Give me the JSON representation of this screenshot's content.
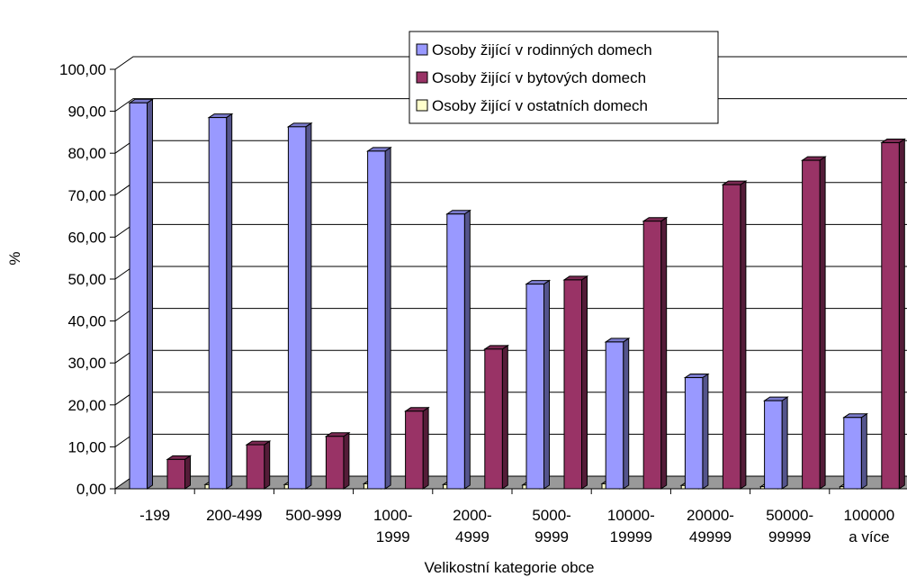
{
  "chart_data": {
    "type": "bar",
    "xlabel": "Velikostní kategorie obce",
    "ylabel": "%",
    "ylim": [
      0,
      100
    ],
    "ytick_step": 10,
    "grid": true,
    "legend_position": "top-center",
    "categories": [
      [
        "-199"
      ],
      [
        "200-499"
      ],
      [
        "500-999"
      ],
      [
        "1000-",
        "1999"
      ],
      [
        "2000-",
        "4999"
      ],
      [
        "5000-",
        "9999"
      ],
      [
        "10000-",
        "19999"
      ],
      [
        "20000-",
        "49999"
      ],
      [
        "50000-",
        "99999"
      ],
      [
        "100000",
        "a více"
      ]
    ],
    "yticks": [
      "0,00",
      "10,00",
      "20,00",
      "30,00",
      "40,00",
      "50,00",
      "60,00",
      "70,00",
      "80,00",
      "90,00",
      "100,00"
    ],
    "series": [
      {
        "name": "Osoby žijící v rodinných domech",
        "color": "#9999ff",
        "values": [
          92.0,
          88.5,
          86.3,
          80.5,
          65.5,
          48.8,
          35.0,
          26.5,
          21.0,
          17.0
        ]
      },
      {
        "name": "Osoby žijící v bytových domech",
        "color": "#993366",
        "values": [
          7.0,
          10.5,
          12.5,
          18.5,
          33.3,
          49.8,
          63.8,
          72.5,
          78.3,
          82.5
        ]
      },
      {
        "name": "Osoby žijící v ostatních domech",
        "color": "#ffffcc",
        "values": [
          1.0,
          1.0,
          1.2,
          1.0,
          0.9,
          1.2,
          0.8,
          0.5,
          0.5,
          0.5
        ]
      }
    ]
  }
}
